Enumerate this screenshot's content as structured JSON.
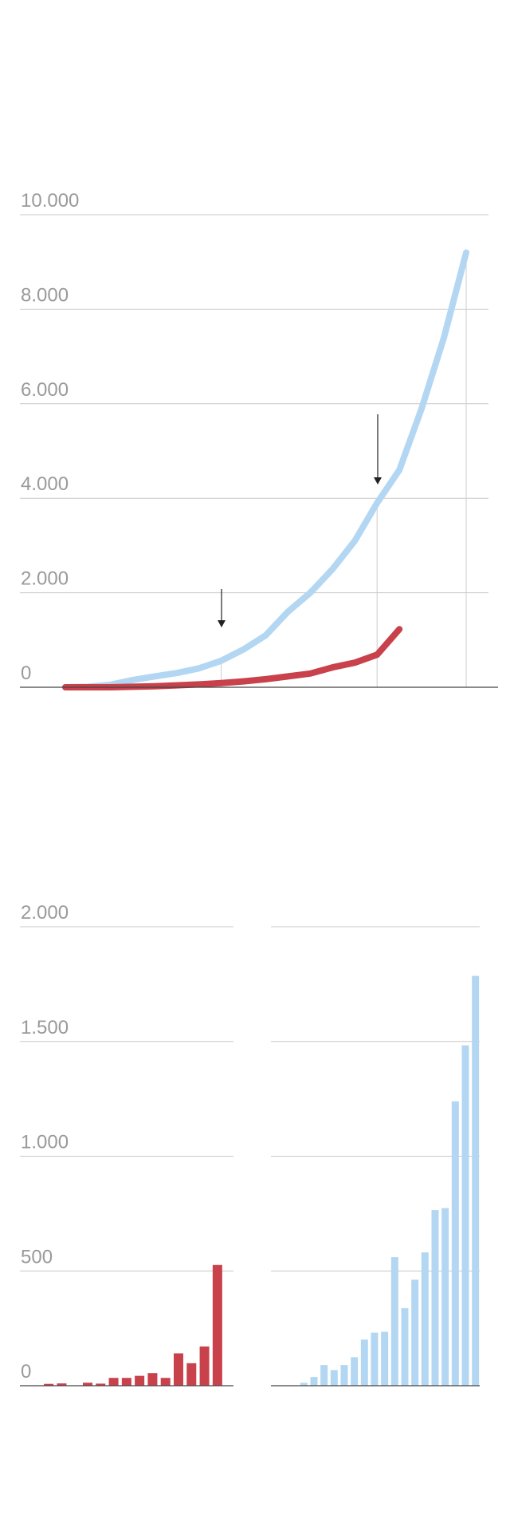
{
  "chart_data": [
    {
      "type": "line",
      "categories": [
        null,
        null,
        null,
        null,
        null,
        null,
        null,
        null,
        null,
        null,
        null,
        null,
        null,
        null,
        null,
        null,
        null,
        null,
        null
      ],
      "series": [
        {
          "color": "#b3d7f2",
          "values": [
            0,
            10,
            50,
            150,
            230,
            300,
            400,
            560,
            800,
            1100,
            1600,
            2000,
            2500,
            3100,
            3900,
            4600,
            5900,
            7400,
            9200
          ]
        },
        {
          "color": "#c8414b",
          "values": [
            0,
            0,
            0,
            10,
            20,
            40,
            60,
            90,
            125,
            170,
            230,
            290,
            420,
            520,
            690,
            1230,
            null,
            null,
            null
          ]
        }
      ],
      "ylim": [
        0,
        10000
      ],
      "yticks": [
        0,
        {
          "value": 2000,
          "label": "2.000"
        },
        {
          "value": 4000,
          "label": "4.000"
        },
        {
          "value": 6000,
          "label": "6.000"
        },
        {
          "value": 8000,
          "label": "8.000"
        },
        {
          "value": 10000,
          "label": "10.000"
        }
      ],
      "grid": true
    },
    {
      "type": "bar",
      "color": "#c8414b",
      "categories": [
        null,
        null,
        null,
        null,
        null,
        null,
        null,
        null,
        null,
        null,
        null,
        null,
        null,
        null
      ],
      "values": [
        8,
        10,
        0,
        13,
        9,
        34,
        34,
        43,
        55,
        34,
        141,
        98,
        171,
        526
      ],
      "ylim": [
        0,
        2000
      ],
      "yticks": [
        0,
        500,
        {
          "value": 1000,
          "label": "1.000"
        },
        {
          "value": 1500,
          "label": "1.500"
        },
        {
          "value": 2000,
          "label": "2.000"
        }
      ],
      "grid": true
    },
    {
      "type": "bar",
      "color": "#b3d7f2",
      "categories": [
        null,
        null,
        null,
        null,
        null,
        null,
        null,
        null,
        null,
        null,
        null,
        null,
        null,
        null,
        null,
        null,
        null,
        null
      ],
      "values": [
        13,
        38,
        90,
        68,
        90,
        124,
        201,
        231,
        235,
        560,
        338,
        462,
        581,
        765,
        774,
        1239,
        1483,
        1786
      ],
      "ylim": [
        0,
        2000
      ],
      "grid": true
    }
  ]
}
